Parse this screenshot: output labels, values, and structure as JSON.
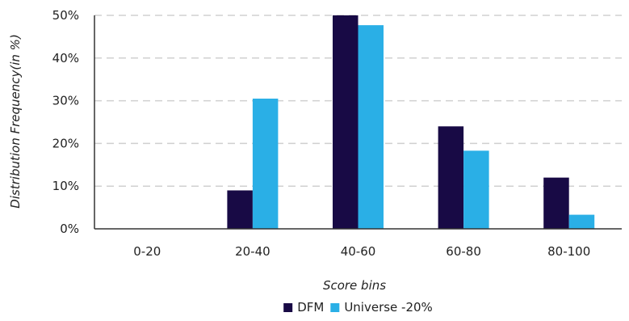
{
  "chart_data": {
    "type": "bar",
    "title": "",
    "xlabel": "Score bins",
    "ylabel": "Distribution Frequency(in %)",
    "categories": [
      "0-20",
      "20-40",
      "40-60",
      "60-80",
      "80-100"
    ],
    "series": [
      {
        "name": "DFM",
        "values": [
          0,
          9,
          50,
          24,
          12
        ],
        "color": "#180a45"
      },
      {
        "name": "Universe -20%",
        "values": [
          0,
          30.5,
          47.7,
          18.3,
          3.3
        ],
        "color": "#2aafe6"
      }
    ],
    "ylim": [
      0,
      50
    ],
    "yticks": [
      0,
      10,
      20,
      30,
      40,
      50
    ],
    "ytick_format": "percent",
    "grid": true,
    "legend_position": "bottom-center"
  }
}
